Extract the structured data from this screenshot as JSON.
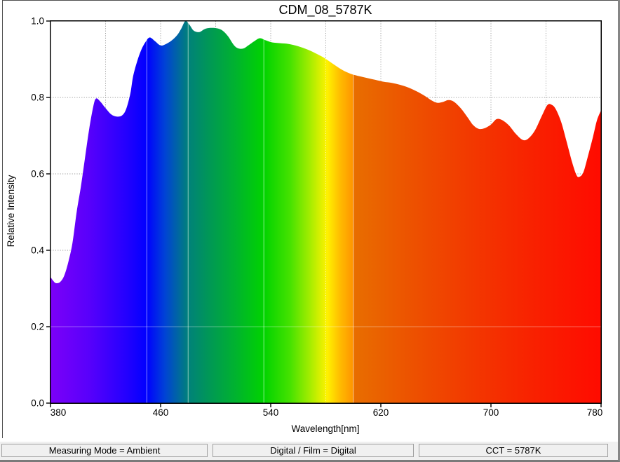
{
  "chart_data": {
    "type": "area",
    "title": "CDM_08_5787K",
    "xlabel": "Wavelength[nm]",
    "ylabel": "Relative Intensity",
    "xlim": [
      380,
      780
    ],
    "ylim": [
      0.0,
      1.0
    ],
    "x_ticks": [
      "380",
      "460",
      "540",
      "620",
      "700",
      "780"
    ],
    "y_ticks": [
      "0.0",
      "0.2",
      "0.4",
      "0.6",
      "0.8",
      "1.0"
    ],
    "grid": {
      "style": "dotted gray",
      "x_every_nm": 40,
      "y_every": 0.2,
      "grid_x_nm": [
        420,
        460,
        500,
        540,
        580,
        620,
        660,
        700,
        740
      ],
      "grid_y": [
        0.2,
        0.4,
        0.6,
        0.8
      ]
    },
    "legend": "none",
    "fill_style": "visible-spectrum gradient under curve",
    "seam_lines_nm": [
      450,
      480,
      535,
      600
    ],
    "dotted_white_grid_nm": 580,
    "gradient_stops": [
      [
        380,
        "#7C00F8"
      ],
      [
        408,
        "#5800FB"
      ],
      [
        435,
        "#2400FE"
      ],
      [
        450,
        "#0000FF"
      ],
      [
        463,
        "#0042D6"
      ],
      [
        480,
        "#00817A"
      ],
      [
        497,
        "#009A52"
      ],
      [
        516,
        "#00B52B"
      ],
      [
        535,
        "#00D300"
      ],
      [
        554,
        "#45E200"
      ],
      [
        569,
        "#A8ED00"
      ],
      [
        581,
        "#FFF200"
      ],
      [
        591,
        "#FFB900"
      ],
      [
        599.9,
        "#FF9400"
      ],
      [
        600.1,
        "#E86E00"
      ],
      [
        645,
        "#ED5000"
      ],
      [
        690,
        "#F33600"
      ],
      [
        735,
        "#F91F00"
      ],
      [
        780,
        "#FF0B00"
      ]
    ],
    "points": [
      [
        380,
        0.33
      ],
      [
        382,
        0.32
      ],
      [
        384,
        0.314
      ],
      [
        387,
        0.317
      ],
      [
        390,
        0.334
      ],
      [
        393,
        0.37
      ],
      [
        396,
        0.42
      ],
      [
        399,
        0.5
      ],
      [
        402,
        0.565
      ],
      [
        405,
        0.64
      ],
      [
        408,
        0.715
      ],
      [
        411,
        0.775
      ],
      [
        413,
        0.797
      ],
      [
        416,
        0.79
      ],
      [
        420,
        0.772
      ],
      [
        424,
        0.756
      ],
      [
        428,
        0.75
      ],
      [
        432,
        0.753
      ],
      [
        435,
        0.77
      ],
      [
        438,
        0.81
      ],
      [
        440,
        0.855
      ],
      [
        443,
        0.895
      ],
      [
        446,
        0.925
      ],
      [
        449,
        0.945
      ],
      [
        452,
        0.957
      ],
      [
        456,
        0.947
      ],
      [
        460,
        0.936
      ],
      [
        464,
        0.94
      ],
      [
        468,
        0.949
      ],
      [
        472,
        0.963
      ],
      [
        475,
        0.98
      ],
      [
        478,
        1.0
      ],
      [
        481,
        0.99
      ],
      [
        484,
        0.975
      ],
      [
        488,
        0.971
      ],
      [
        492,
        0.979
      ],
      [
        496,
        0.982
      ],
      [
        501,
        0.981
      ],
      [
        505,
        0.975
      ],
      [
        509,
        0.96
      ],
      [
        513,
        0.938
      ],
      [
        516,
        0.929
      ],
      [
        520,
        0.928
      ],
      [
        524,
        0.937
      ],
      [
        528,
        0.947
      ],
      [
        532,
        0.955
      ],
      [
        536,
        0.95
      ],
      [
        541,
        0.944
      ],
      [
        547,
        0.942
      ],
      [
        553,
        0.94
      ],
      [
        560,
        0.934
      ],
      [
        567,
        0.925
      ],
      [
        574,
        0.913
      ],
      [
        580,
        0.901
      ],
      [
        586,
        0.886
      ],
      [
        592,
        0.872
      ],
      [
        598,
        0.862
      ],
      [
        604,
        0.856
      ],
      [
        610,
        0.851
      ],
      [
        616,
        0.846
      ],
      [
        622,
        0.841
      ],
      [
        628,
        0.838
      ],
      [
        634,
        0.833
      ],
      [
        640,
        0.826
      ],
      [
        646,
        0.816
      ],
      [
        652,
        0.804
      ],
      [
        657,
        0.792
      ],
      [
        661,
        0.786
      ],
      [
        665,
        0.788
      ],
      [
        669,
        0.793
      ],
      [
        673,
        0.789
      ],
      [
        678,
        0.772
      ],
      [
        683,
        0.748
      ],
      [
        687,
        0.728
      ],
      [
        691,
        0.718
      ],
      [
        695,
        0.719
      ],
      [
        700,
        0.729
      ],
      [
        704,
        0.743
      ],
      [
        708,
        0.741
      ],
      [
        713,
        0.727
      ],
      [
        718,
        0.705
      ],
      [
        723,
        0.689
      ],
      [
        727,
        0.692
      ],
      [
        732,
        0.714
      ],
      [
        737,
        0.752
      ],
      [
        741,
        0.78
      ],
      [
        744,
        0.781
      ],
      [
        747,
        0.77
      ],
      [
        751,
        0.736
      ],
      [
        755,
        0.684
      ],
      [
        759,
        0.63
      ],
      [
        762,
        0.598
      ],
      [
        764,
        0.592
      ],
      [
        767,
        0.603
      ],
      [
        770,
        0.64
      ],
      [
        774,
        0.695
      ],
      [
        777,
        0.74
      ],
      [
        780,
        0.766
      ]
    ],
    "colors": {
      "grid": "#9c9c9c",
      "axis": "#000000",
      "seam_white": "rgba(255,255,255,0.55)",
      "status_bg": "#f0f0f0",
      "status_border": "#a0a0a0",
      "frame_gray": "#808080"
    }
  },
  "status_bar": {
    "panels": [
      "Measuring Mode = Ambient",
      "Digital / Film = Digital",
      "CCT = 5787K"
    ]
  }
}
